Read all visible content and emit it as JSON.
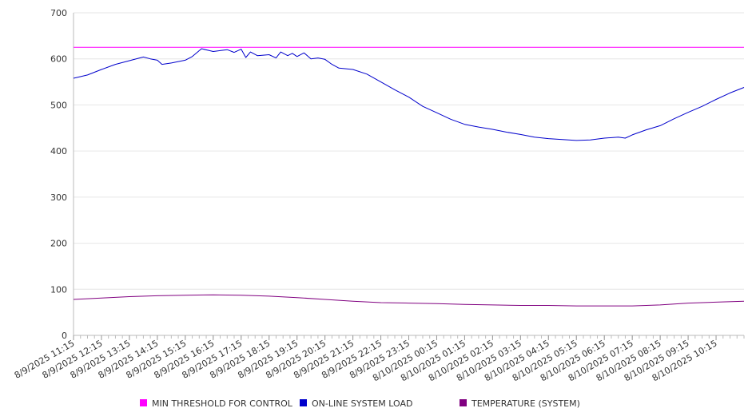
{
  "chart_data": {
    "type": "line",
    "title": "",
    "xlabel": "",
    "ylabel": "",
    "ylim": [
      0,
      700
    ],
    "yticks": [
      0,
      100,
      200,
      300,
      400,
      500,
      600,
      700
    ],
    "grid": true,
    "legend_position": "bottom",
    "x_range": [
      "8/9/2025 11:15",
      "8/10/2025 11:15"
    ],
    "x_tick_labels": [
      "8/9/2025 11:15",
      "8/9/2025 12:15",
      "8/9/2025 13:15",
      "8/9/2025 14:15",
      "8/9/2025 15:15",
      "8/9/2025 16:15",
      "8/9/2025 17:15",
      "8/9/2025 18:15",
      "8/9/2025 19:15",
      "8/9/2025 20:15",
      "8/9/2025 21:15",
      "8/9/2025 22:15",
      "8/9/2025 23:15",
      "8/10/2025 00:15",
      "8/10/2025 01:15",
      "8/10/2025 02:15",
      "8/10/2025 03:15",
      "8/10/2025 04:15",
      "8/10/2025 05:15",
      "8/10/2025 06:15",
      "8/10/2025 07:15",
      "8/10/2025 08:15",
      "8/10/2025 09:15",
      "8/10/2025 10:15"
    ],
    "series": [
      {
        "name": "MIN THRESHOLD FOR CONTROL",
        "color": "#ff00ff",
        "points": [
          [
            "8/9/2025 11:15",
            625
          ],
          [
            "8/10/2025 11:15",
            625
          ]
        ]
      },
      {
        "name": "ON-LINE SYSTEM LOAD",
        "color": "#0000cc",
        "points": [
          [
            "8/9/2025 11:15",
            558
          ],
          [
            "8/9/2025 11:45",
            565
          ],
          [
            "8/9/2025 12:15",
            577
          ],
          [
            "8/9/2025 12:45",
            588
          ],
          [
            "8/9/2025 13:15",
            596
          ],
          [
            "8/9/2025 13:45",
            604
          ],
          [
            "8/9/2025 14:00",
            600
          ],
          [
            "8/9/2025 14:15",
            597
          ],
          [
            "8/9/2025 14:25",
            588
          ],
          [
            "8/9/2025 14:45",
            591
          ],
          [
            "8/9/2025 15:15",
            597
          ],
          [
            "8/9/2025 15:30",
            605
          ],
          [
            "8/9/2025 15:50",
            622
          ],
          [
            "8/9/2025 16:15",
            616
          ],
          [
            "8/9/2025 16:45",
            620
          ],
          [
            "8/9/2025 17:00",
            614
          ],
          [
            "8/9/2025 17:15",
            621
          ],
          [
            "8/9/2025 17:25",
            603
          ],
          [
            "8/9/2025 17:35",
            615
          ],
          [
            "8/9/2025 17:50",
            607
          ],
          [
            "8/9/2025 18:15",
            609
          ],
          [
            "8/9/2025 18:30",
            602
          ],
          [
            "8/9/2025 18:40",
            615
          ],
          [
            "8/9/2025 18:55",
            607
          ],
          [
            "8/9/2025 19:05",
            612
          ],
          [
            "8/9/2025 19:15",
            605
          ],
          [
            "8/9/2025 19:30",
            613
          ],
          [
            "8/9/2025 19:45",
            600
          ],
          [
            "8/9/2025 20:00",
            602
          ],
          [
            "8/9/2025 20:15",
            599
          ],
          [
            "8/9/2025 20:30",
            588
          ],
          [
            "8/9/2025 20:45",
            580
          ],
          [
            "8/9/2025 21:15",
            577
          ],
          [
            "8/9/2025 21:45",
            567
          ],
          [
            "8/9/2025 22:15",
            550
          ],
          [
            "8/9/2025 22:45",
            533
          ],
          [
            "8/9/2025 23:15",
            517
          ],
          [
            "8/9/2025 23:45",
            497
          ],
          [
            "8/10/2025 00:15",
            483
          ],
          [
            "8/10/2025 00:45",
            469
          ],
          [
            "8/10/2025 01:15",
            458
          ],
          [
            "8/10/2025 01:45",
            452
          ],
          [
            "8/10/2025 02:15",
            447
          ],
          [
            "8/10/2025 02:45",
            441
          ],
          [
            "8/10/2025 03:15",
            436
          ],
          [
            "8/10/2025 03:45",
            430
          ],
          [
            "8/10/2025 04:15",
            427
          ],
          [
            "8/10/2025 04:45",
            425
          ],
          [
            "8/10/2025 05:15",
            423
          ],
          [
            "8/10/2025 05:45",
            424
          ],
          [
            "8/10/2025 06:15",
            428
          ],
          [
            "8/10/2025 06:45",
            430
          ],
          [
            "8/10/2025 07:00",
            428
          ],
          [
            "8/10/2025 07:15",
            435
          ],
          [
            "8/10/2025 07:45",
            446
          ],
          [
            "8/10/2025 08:15",
            455
          ],
          [
            "8/10/2025 08:45",
            470
          ],
          [
            "8/10/2025 09:15",
            484
          ],
          [
            "8/10/2025 09:45",
            497
          ],
          [
            "8/10/2025 10:15",
            512
          ],
          [
            "8/10/2025 10:45",
            526
          ],
          [
            "8/10/2025 11:15",
            538
          ]
        ]
      },
      {
        "name": "TEMPERATURE (SYSTEM)",
        "color": "#800080",
        "points": [
          [
            "8/9/2025 11:15",
            78
          ],
          [
            "8/9/2025 12:15",
            81
          ],
          [
            "8/9/2025 13:15",
            84
          ],
          [
            "8/9/2025 14:15",
            86
          ],
          [
            "8/9/2025 15:15",
            87
          ],
          [
            "8/9/2025 16:15",
            88
          ],
          [
            "8/9/2025 17:15",
            87
          ],
          [
            "8/9/2025 18:15",
            85
          ],
          [
            "8/9/2025 19:15",
            82
          ],
          [
            "8/9/2025 20:15",
            78
          ],
          [
            "8/9/2025 21:15",
            74
          ],
          [
            "8/9/2025 22:15",
            71
          ],
          [
            "8/9/2025 23:15",
            70
          ],
          [
            "8/10/2025 00:15",
            69
          ],
          [
            "8/10/2025 01:15",
            67
          ],
          [
            "8/10/2025 02:15",
            66
          ],
          [
            "8/10/2025 03:15",
            65
          ],
          [
            "8/10/2025 04:15",
            65
          ],
          [
            "8/10/2025 05:15",
            64
          ],
          [
            "8/10/2025 06:15",
            64
          ],
          [
            "8/10/2025 07:15",
            64
          ],
          [
            "8/10/2025 08:15",
            66
          ],
          [
            "8/10/2025 09:15",
            70
          ],
          [
            "8/10/2025 10:15",
            72
          ],
          [
            "8/10/2025 11:15",
            74
          ]
        ]
      }
    ]
  }
}
